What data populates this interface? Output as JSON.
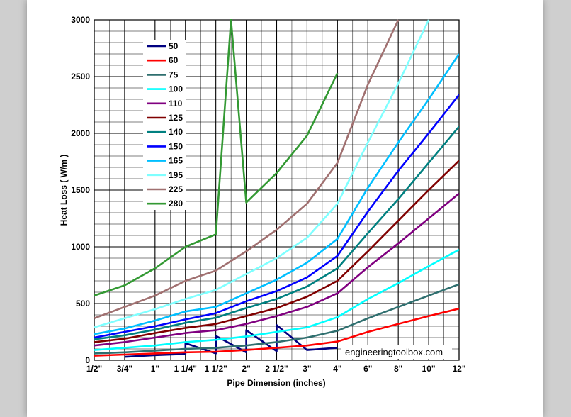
{
  "chart_data": {
    "type": "line",
    "xlabel": "Pipe Dimension (inches)",
    "ylabel": "Heat Loss ( W/m )",
    "categories": [
      "1/2\"",
      "3/4\"",
      "1\"",
      "1 1/4\"",
      "1 1/2\"",
      "2\"",
      "2 1/2\"",
      "3\"",
      "4\"",
      "6\"",
      "8\"",
      "10\"",
      "12\""
    ],
    "ylim": [
      0,
      3000
    ],
    "yticks": [
      "0",
      "500",
      "1000",
      "1500",
      "2000",
      "2500",
      "3000"
    ],
    "grid": true,
    "legend_position": "top-left",
    "watermark": "engineeringtoolbox.com",
    "series": [
      {
        "name": "50",
        "color": "#000080",
        "values": [
          null,
          30,
          45,
          55,
          60,
          70,
          80,
          90,
          110,
          null,
          null,
          null,
          null
        ],
        "tail": [
          [
            3,
            150
          ],
          [
            4,
            215
          ],
          [
            5,
            265
          ],
          [
            6,
            310
          ]
        ]
      },
      {
        "name": "60",
        "color": "#ff0000",
        "values": [
          40,
          50,
          60,
          70,
          75,
          90,
          110,
          130,
          165,
          250,
          320,
          390,
          455
        ]
      },
      {
        "name": "75",
        "color": "#2f6f6f",
        "values": [
          60,
          70,
          85,
          100,
          110,
          130,
          160,
          200,
          260,
          370,
          470,
          570,
          670
        ]
      },
      {
        "name": "100",
        "color": "#00ffff",
        "values": [
          90,
          110,
          130,
          160,
          180,
          210,
          250,
          290,
          380,
          540,
          680,
          830,
          975
        ]
      },
      {
        "name": "110",
        "color": "#800080",
        "values": [
          130,
          160,
          200,
          240,
          265,
          320,
          390,
          470,
          590,
          820,
          1030,
          1250,
          1470
        ]
      },
      {
        "name": "125",
        "color": "#800000",
        "values": [
          160,
          190,
          240,
          285,
          320,
          390,
          460,
          560,
          700,
          960,
          1230,
          1500,
          1760
        ]
      },
      {
        "name": "140",
        "color": "#008080",
        "values": [
          185,
          220,
          270,
          330,
          375,
          460,
          540,
          650,
          810,
          1120,
          1420,
          1740,
          2060
        ]
      },
      {
        "name": "150",
        "color": "#0000ff",
        "values": [
          200,
          250,
          300,
          360,
          415,
          520,
          610,
          730,
          920,
          1310,
          1670,
          2000,
          2340
        ]
      },
      {
        "name": "165",
        "color": "#00bfff",
        "values": [
          230,
          280,
          350,
          430,
          470,
          590,
          710,
          860,
          1070,
          1520,
          1920,
          2300,
          2700
        ]
      },
      {
        "name": "195",
        "color": "#7fffff",
        "values": [
          290,
          370,
          450,
          540,
          620,
          760,
          900,
          1080,
          1380,
          1920,
          2440,
          3000,
          null
        ]
      },
      {
        "name": "225",
        "color": "#a07070",
        "values": [
          370,
          470,
          570,
          700,
          790,
          960,
          1150,
          1380,
          1740,
          2430,
          3000,
          null,
          null
        ]
      },
      {
        "name": "280",
        "color": "#339933",
        "values": [
          570,
          660,
          810,
          1000,
          1110,
          1390,
          1650,
          1980,
          2530,
          null,
          null,
          null,
          null
        ],
        "tail": [
          [
            4.5,
            3000
          ]
        ]
      }
    ]
  }
}
